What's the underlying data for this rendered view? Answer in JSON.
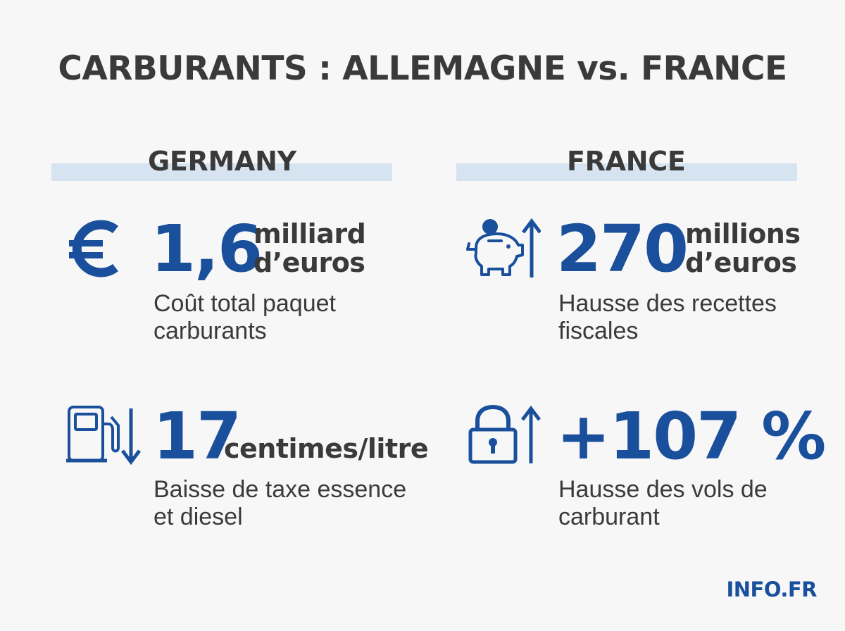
{
  "title": "CARBURANTS : ALLEMAGNE vs. FRANCE",
  "columns": {
    "germany": {
      "header": "GERMANY",
      "stats": [
        {
          "value": "1,6",
          "unit_line1": "milliard",
          "unit_line2": "d’euros",
          "desc": "Coût total paquet carburants",
          "icon": "euro-icon"
        },
        {
          "value": "17",
          "unit": "centimes/litre",
          "desc": "Baisse de taxe essence et diesel",
          "icon": "fuel-pump-down-arrow-icon"
        }
      ]
    },
    "france": {
      "header": "FRANCE",
      "stats": [
        {
          "value": "270",
          "unit_line1": "millions",
          "unit_line2": "d’euros",
          "desc": "Hausse des recettes fiscales",
          "icon": "piggy-bank-up-arrow-icon"
        },
        {
          "value": "+107 %",
          "desc": "Hausse des vols de carburant",
          "icon": "padlock-up-arrow-icon"
        }
      ]
    }
  },
  "brand": "INFO.FR",
  "colors": {
    "accent": "#1a4f9c",
    "text": "#3a3a3a",
    "header_band": "#d6e4f1",
    "background": "#f7f7f7"
  }
}
